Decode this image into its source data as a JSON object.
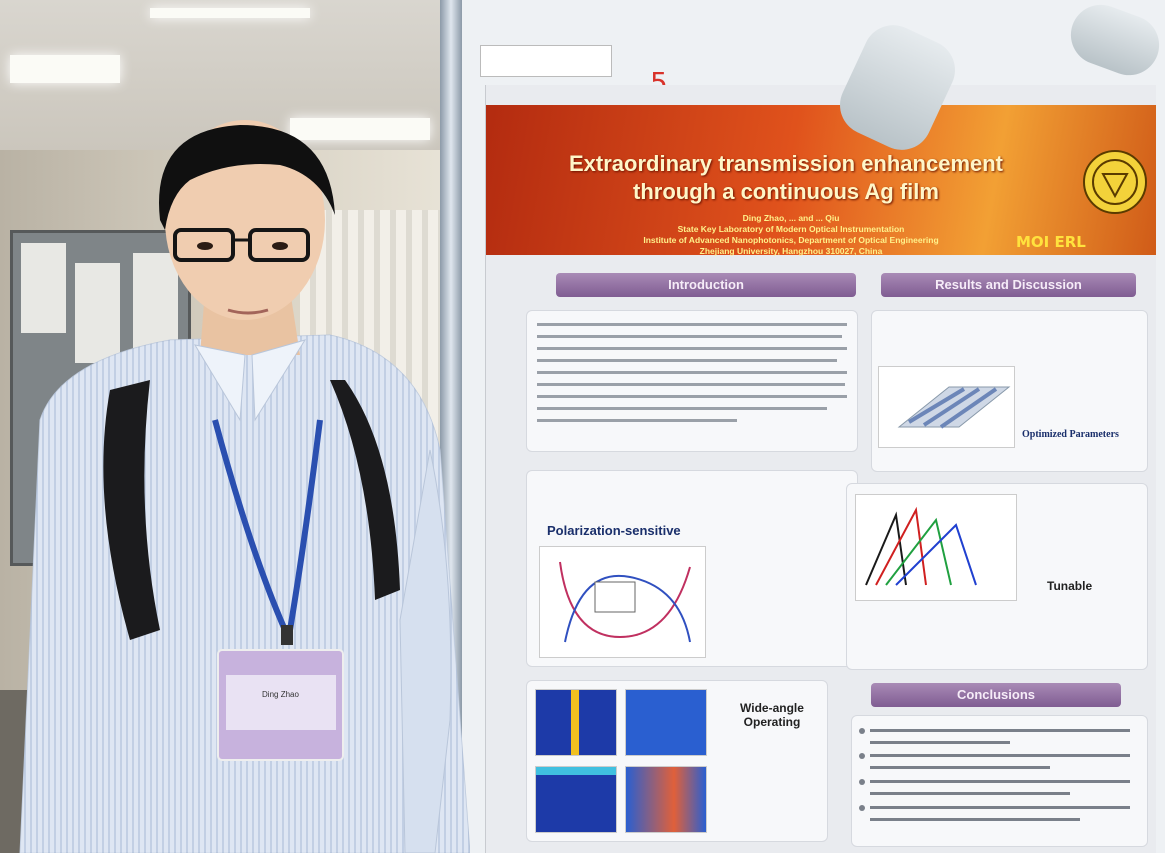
{
  "poster": {
    "page_mark": "5",
    "title_line1": "Extraordinary transmission enhancement",
    "title_line2": "through a continuous Ag film",
    "authors": "Ding Zhao, ... and ... Qiu",
    "affiliation1": "State Key Laboratory of Modern Optical Instrumentation",
    "affiliation2": "Institute of Advanced Nanophotonics, Department of Optical Engineering",
    "affiliation3": "Zhejiang University, Hangzhou 310027, China",
    "logo_text": "MOI ERL",
    "sections": {
      "introduction": "Introduction",
      "results": "Results and Discussion",
      "conclusions": "Conclusions"
    },
    "headings": {
      "polarization": "Polarization-sensitive",
      "tunable": "Tunable",
      "wide_angle_1": "Wide-angle",
      "wide_angle_2": "Operating",
      "optimized": "Optimized Parameters"
    }
  },
  "badge": {
    "name": "Ding Zhao"
  },
  "colors": {
    "banner_red": "#b32b10",
    "banner_orange": "#f2a034",
    "section_purple": "#8f6ea2",
    "shirt_blue": "#c9d6ea",
    "lanyard_blue": "#2a4fb0"
  }
}
